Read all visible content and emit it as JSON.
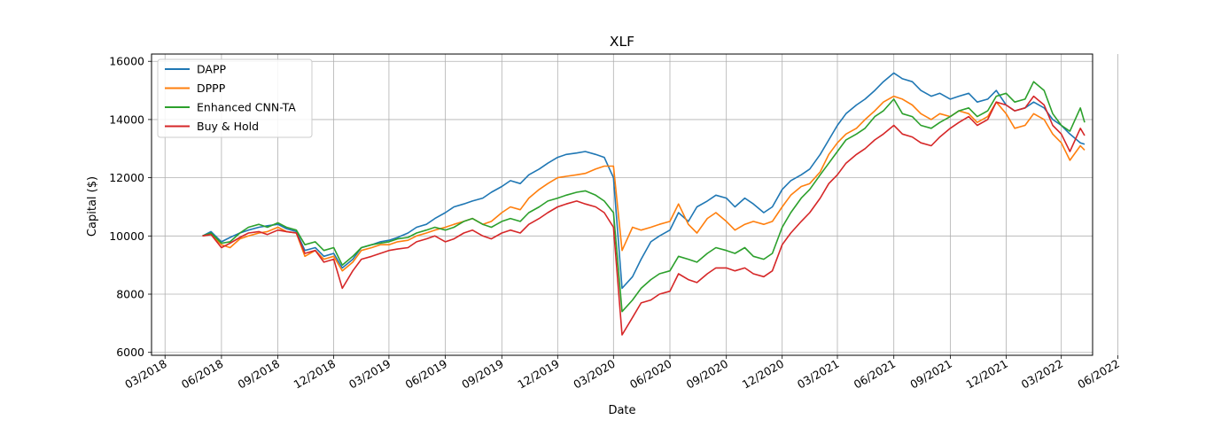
{
  "chart_data": {
    "type": "line",
    "title": "XLF",
    "xlabel": "Date",
    "ylabel": "Capital ($)",
    "xlim": [
      "2018-02-07",
      "2022-04-21"
    ],
    "ylim": [
      5900,
      16250
    ],
    "grid": true,
    "legend_position": "top-left",
    "x_ticks": [
      {
        "date": "2018-03-01",
        "label": "03/2018"
      },
      {
        "date": "2018-06-01",
        "label": "06/2018"
      },
      {
        "date": "2018-09-01",
        "label": "09/2018"
      },
      {
        "date": "2018-12-01",
        "label": "12/2018"
      },
      {
        "date": "2019-03-01",
        "label": "03/2019"
      },
      {
        "date": "2019-06-01",
        "label": "06/2019"
      },
      {
        "date": "2019-09-01",
        "label": "09/2019"
      },
      {
        "date": "2019-12-01",
        "label": "12/2019"
      },
      {
        "date": "2020-03-01",
        "label": "03/2020"
      },
      {
        "date": "2020-06-01",
        "label": "06/2020"
      },
      {
        "date": "2020-09-01",
        "label": "09/2020"
      },
      {
        "date": "2020-12-01",
        "label": "12/2020"
      },
      {
        "date": "2021-03-01",
        "label": "03/2021"
      },
      {
        "date": "2021-06-01",
        "label": "06/2021"
      },
      {
        "date": "2021-09-01",
        "label": "09/2021"
      },
      {
        "date": "2021-12-01",
        "label": "12/2021"
      },
      {
        "date": "2022-03-01",
        "label": "03/2022"
      },
      {
        "date": "2022-06-01",
        "label": "06/2022"
      }
    ],
    "y_ticks": [
      {
        "value": 6000,
        "label": "6000"
      },
      {
        "value": 8000,
        "label": "8000"
      },
      {
        "value": 10000,
        "label": "10000"
      },
      {
        "value": 12000,
        "label": "12000"
      },
      {
        "value": 14000,
        "label": "14000"
      },
      {
        "value": 16000,
        "label": "16000"
      }
    ],
    "x": [
      "2018-05-01",
      "2018-05-15",
      "2018-06-01",
      "2018-06-15",
      "2018-07-01",
      "2018-07-15",
      "2018-08-01",
      "2018-08-15",
      "2018-09-01",
      "2018-09-15",
      "2018-10-01",
      "2018-10-15",
      "2018-11-01",
      "2018-11-15",
      "2018-12-01",
      "2018-12-15",
      "2019-01-01",
      "2019-01-15",
      "2019-02-01",
      "2019-02-15",
      "2019-03-01",
      "2019-03-15",
      "2019-04-01",
      "2019-04-15",
      "2019-05-01",
      "2019-05-15",
      "2019-06-01",
      "2019-06-15",
      "2019-07-01",
      "2019-07-15",
      "2019-08-01",
      "2019-08-15",
      "2019-09-01",
      "2019-09-15",
      "2019-10-01",
      "2019-10-15",
      "2019-11-01",
      "2019-11-15",
      "2019-12-01",
      "2019-12-15",
      "2020-01-01",
      "2020-01-15",
      "2020-02-01",
      "2020-02-15",
      "2020-03-01",
      "2020-03-15",
      "2020-04-01",
      "2020-04-15",
      "2020-05-01",
      "2020-05-15",
      "2020-06-01",
      "2020-06-15",
      "2020-07-01",
      "2020-07-15",
      "2020-08-01",
      "2020-08-15",
      "2020-09-01",
      "2020-09-15",
      "2020-10-01",
      "2020-10-15",
      "2020-11-01",
      "2020-11-15",
      "2020-12-01",
      "2020-12-15",
      "2021-01-01",
      "2021-01-15",
      "2021-02-01",
      "2021-02-15",
      "2021-03-01",
      "2021-03-15",
      "2021-04-01",
      "2021-04-15",
      "2021-05-01",
      "2021-05-15",
      "2021-06-01",
      "2021-06-15",
      "2021-07-01",
      "2021-07-15",
      "2021-08-01",
      "2021-08-15",
      "2021-09-01",
      "2021-09-15",
      "2021-10-01",
      "2021-10-15",
      "2021-11-01",
      "2021-11-15",
      "2021-12-01",
      "2021-12-15",
      "2022-01-01",
      "2022-01-15",
      "2022-02-01",
      "2022-02-15",
      "2022-03-01",
      "2022-03-15",
      "2022-04-01",
      "2022-04-08"
    ],
    "series": [
      {
        "name": "DAPP",
        "color": "#1f77b4",
        "values": [
          10000,
          10150,
          9800,
          9950,
          10100,
          10200,
          10300,
          10350,
          10400,
          10250,
          10150,
          9500,
          9600,
          9300,
          9400,
          8900,
          9200,
          9600,
          9700,
          9800,
          9850,
          9950,
          10100,
          10300,
          10400,
          10600,
          10800,
          11000,
          11100,
          11200,
          11300,
          11500,
          11700,
          11900,
          11800,
          12100,
          12300,
          12500,
          12700,
          12800,
          12850,
          12900,
          12800,
          12700,
          12000,
          8200,
          8600,
          9200,
          9800,
          10000,
          10200,
          10800,
          10500,
          11000,
          11200,
          11400,
          11300,
          11000,
          11300,
          11100,
          10800,
          11000,
          11600,
          11900,
          12100,
          12300,
          12800,
          13300,
          13800,
          14200,
          14500,
          14700,
          15000,
          15300,
          15600,
          15400,
          15300,
          15000,
          14800,
          14900,
          14700,
          14800,
          14900,
          14600,
          14700,
          15000,
          14500,
          14300,
          14400,
          14600,
          14400,
          14000,
          13800,
          13500,
          13200,
          13150
        ]
      },
      {
        "name": "DPPP",
        "color": "#ff7f0e",
        "values": [
          10000,
          10050,
          9700,
          9600,
          9900,
          10000,
          10100,
          10150,
          10300,
          10150,
          10100,
          9300,
          9500,
          9200,
          9300,
          8800,
          9100,
          9500,
          9600,
          9700,
          9700,
          9800,
          9850,
          10000,
          10100,
          10200,
          10300,
          10400,
          10500,
          10600,
          10400,
          10500,
          10800,
          11000,
          10900,
          11300,
          11600,
          11800,
          12000,
          12050,
          12100,
          12150,
          12300,
          12400,
          12400,
          9500,
          10300,
          10200,
          10300,
          10400,
          10500,
          11100,
          10400,
          10100,
          10600,
          10800,
          10500,
          10200,
          10400,
          10500,
          10400,
          10500,
          11000,
          11400,
          11700,
          11800,
          12200,
          12800,
          13200,
          13500,
          13700,
          14000,
          14300,
          14600,
          14800,
          14700,
          14500,
          14200,
          14000,
          14200,
          14100,
          14300,
          14200,
          13900,
          14100,
          14600,
          14200,
          13700,
          13800,
          14200,
          14000,
          13500,
          13200,
          12600,
          13100,
          12950
        ]
      },
      {
        "name": "Enhanced CNN-TA",
        "color": "#2ca02c",
        "values": [
          10000,
          10100,
          9750,
          9800,
          10100,
          10300,
          10400,
          10300,
          10450,
          10300,
          10200,
          9700,
          9800,
          9500,
          9600,
          9000,
          9300,
          9600,
          9700,
          9750,
          9800,
          9900,
          9950,
          10100,
          10200,
          10300,
          10200,
          10300,
          10500,
          10600,
          10400,
          10300,
          10500,
          10600,
          10500,
          10800,
          11000,
          11200,
          11300,
          11400,
          11500,
          11550,
          11400,
          11200,
          10800,
          7400,
          7800,
          8200,
          8500,
          8700,
          8800,
          9300,
          9200,
          9100,
          9400,
          9600,
          9500,
          9400,
          9600,
          9300,
          9200,
          9400,
          10300,
          10800,
          11300,
          11600,
          12100,
          12500,
          12900,
          13300,
          13500,
          13700,
          14100,
          14300,
          14700,
          14200,
          14100,
          13800,
          13700,
          13900,
          14100,
          14300,
          14400,
          14100,
          14300,
          14800,
          14900,
          14600,
          14700,
          15300,
          15000,
          14200,
          13800,
          13600,
          14400,
          13900
        ]
      },
      {
        "name": "Buy & Hold",
        "color": "#d62728",
        "values": [
          10000,
          10050,
          9600,
          9750,
          9950,
          10100,
          10150,
          10050,
          10200,
          10150,
          10100,
          9400,
          9500,
          9100,
          9200,
          8200,
          8800,
          9200,
          9300,
          9400,
          9500,
          9550,
          9600,
          9800,
          9900,
          10000,
          9800,
          9900,
          10100,
          10200,
          10000,
          9900,
          10100,
          10200,
          10100,
          10400,
          10600,
          10800,
          11000,
          11100,
          11200,
          11100,
          11000,
          10800,
          10300,
          6600,
          7200,
          7700,
          7800,
          8000,
          8100,
          8700,
          8500,
          8400,
          8700,
          8900,
          8900,
          8800,
          8900,
          8700,
          8600,
          8800,
          9700,
          10100,
          10500,
          10800,
          11300,
          11800,
          12100,
          12500,
          12800,
          13000,
          13300,
          13500,
          13800,
          13500,
          13400,
          13200,
          13100,
          13400,
          13700,
          13900,
          14100,
          13800,
          14000,
          14600,
          14500,
          14300,
          14400,
          14800,
          14500,
          13800,
          13500,
          12900,
          13700,
          13450
        ]
      }
    ]
  }
}
